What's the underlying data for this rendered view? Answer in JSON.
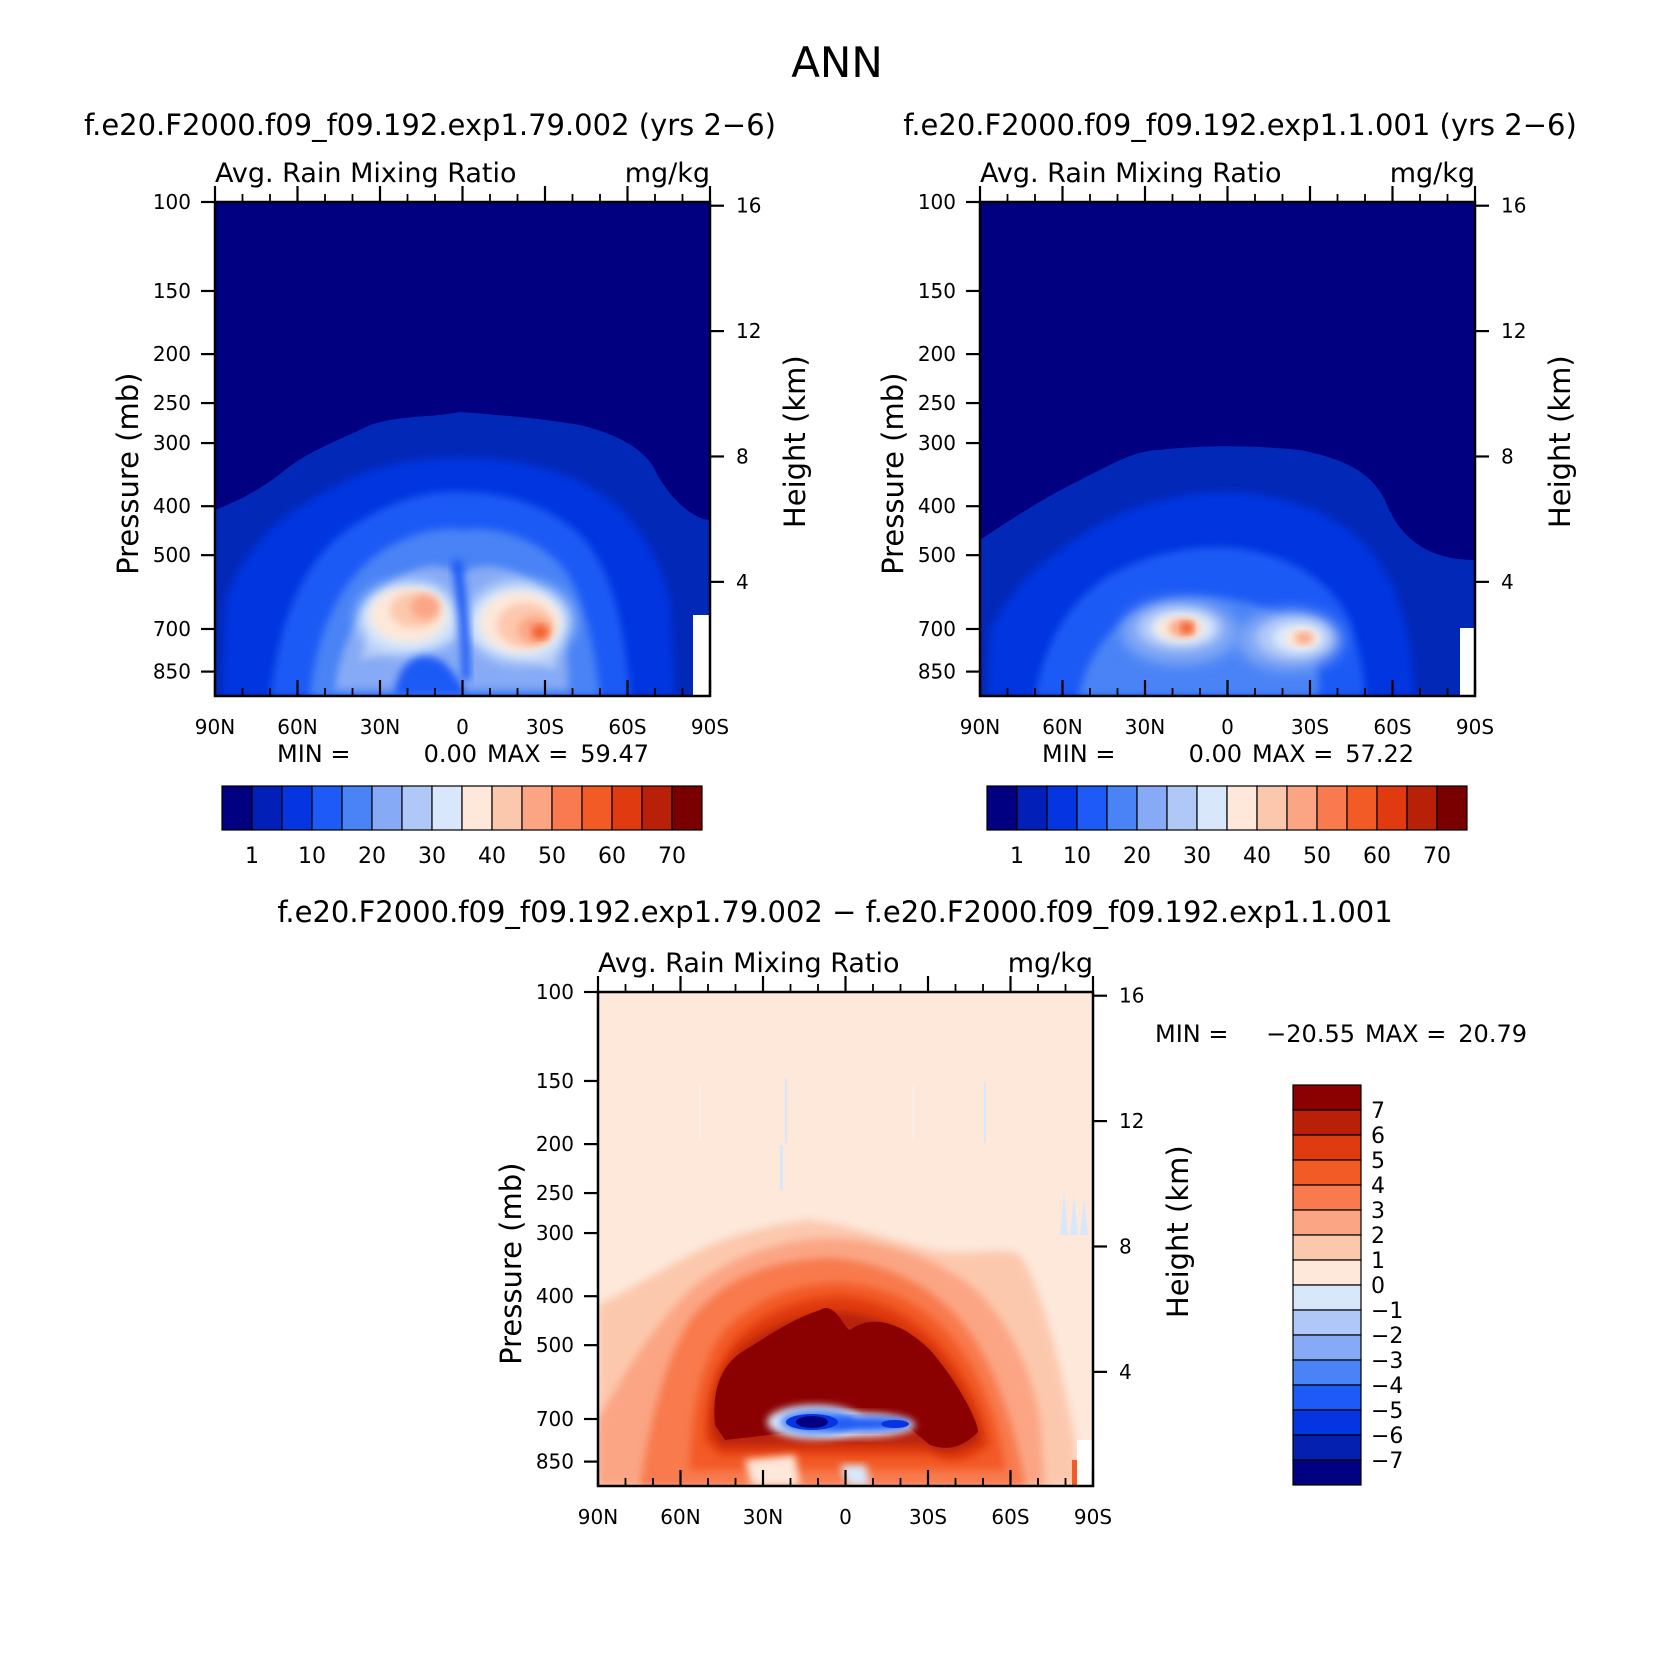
{
  "figure": {
    "title": "ANN",
    "panel_titles": [
      "f.e20.F2000.f09_f09.192.exp1.79.002 (yrs 2−6)",
      "f.e20.F2000.f09_f09.192.exp1.1.001 (yrs 2−6)",
      "f.e20.F2000.f09_f09.192.exp1.79.002 − f.e20.F2000.f09_f09.192.exp1.1.001"
    ]
  },
  "colors": {
    "seq_colorbar": [
      "#000080",
      "#0220b8",
      "#0535e0",
      "#1e5af5",
      "#4a83f5",
      "#86aaf5",
      "#b0c8f8",
      "#d8e8fa",
      "#fde8da",
      "#fcc8ad",
      "#fba584",
      "#f87a4e",
      "#f25a26",
      "#e03a10",
      "#b82008",
      "#7a0000"
    ],
    "diff_colorbar": [
      "#000080",
      "#0320b0",
      "#0535e0",
      "#1e5af5",
      "#4a83f5",
      "#86aaf5",
      "#b0c8f8",
      "#d8e8fa",
      "#fde8da",
      "#fcc8ad",
      "#fba584",
      "#f87a4e",
      "#f25a26",
      "#e03a10",
      "#b82008",
      "#8b0000"
    ]
  },
  "chart_data": [
    {
      "type": "heatmap",
      "title": "f.e20.F2000.f09_f09.192.exp1.79.002 (yrs 2−6)",
      "subtitle_left": "Avg. Rain Mixing Ratio",
      "subtitle_right": "mg/kg",
      "xlabel": "",
      "ylabel": "Pressure (mb)",
      "ylabel_right": "Height (km)",
      "x_ticks": [
        "90N",
        "60N",
        "30N",
        "0",
        "30S",
        "60S",
        "90S"
      ],
      "y_ticks": [
        "100",
        "150",
        "200",
        "250",
        "300",
        "400",
        "500",
        "700",
        "850"
      ],
      "y_ticks_right": [
        "16",
        "12",
        "8",
        "4"
      ],
      "stats": {
        "min_label": "MIN =",
        "min": "0.00",
        "max_label": "MAX =",
        "max": "59.47"
      },
      "colorbar_labels": [
        "1",
        "10",
        "20",
        "30",
        "40",
        "50",
        "60",
        "70"
      ],
      "features": [
        {
          "lat": 15,
          "p": 640,
          "value": 52
        },
        {
          "lat": -30,
          "p": 680,
          "value": 59.47
        }
      ]
    },
    {
      "type": "heatmap",
      "title": "f.e20.F2000.f09_f09.192.exp1.1.001 (yrs 2−6)",
      "subtitle_left": "Avg. Rain Mixing Ratio",
      "subtitle_right": "mg/kg",
      "xlabel": "",
      "ylabel": "Pressure (mb)",
      "ylabel_right": "Height (km)",
      "x_ticks": [
        "90N",
        "60N",
        "30N",
        "0",
        "30S",
        "60S",
        "90S"
      ],
      "y_ticks": [
        "100",
        "150",
        "200",
        "250",
        "300",
        "400",
        "500",
        "700",
        "850"
      ],
      "y_ticks_right": [
        "16",
        "12",
        "8",
        "4"
      ],
      "stats": {
        "min_label": "MIN =",
        "min": "0.00",
        "max_label": "MAX =",
        "max": "57.22"
      },
      "colorbar_labels": [
        "1",
        "10",
        "20",
        "30",
        "40",
        "50",
        "60",
        "70"
      ],
      "features": [
        {
          "lat": 12,
          "p": 690,
          "value": 57.22
        },
        {
          "lat": -28,
          "p": 700,
          "value": 52
        }
      ]
    },
    {
      "type": "heatmap",
      "title": "f.e20.F2000.f09_f09.192.exp1.79.002 − f.e20.F2000.f09_f09.192.exp1.1.001",
      "subtitle_left": "Avg. Rain Mixing Ratio",
      "subtitle_right": "mg/kg",
      "xlabel": "",
      "ylabel": "Pressure (mb)",
      "ylabel_right": "Height (km)",
      "x_ticks": [
        "90N",
        "60N",
        "30N",
        "0",
        "30S",
        "60S",
        "90S"
      ],
      "y_ticks": [
        "100",
        "150",
        "200",
        "250",
        "300",
        "400",
        "500",
        "700",
        "850"
      ],
      "y_ticks_right": [
        "16",
        "12",
        "8",
        "4"
      ],
      "stats": {
        "min_label": "MIN =",
        "min": "−20.55",
        "max_label": "MAX =",
        "max": "20.79"
      },
      "colorbar_labels": [
        "7",
        "6",
        "5",
        "4",
        "3",
        "2",
        "1",
        "0",
        "−1",
        "−2",
        "−3",
        "−4",
        "−5",
        "−6",
        "−7"
      ],
      "features": [
        {
          "lat": 12,
          "p": 700,
          "value": -20.55
        },
        {
          "lat": -20,
          "p": 450,
          "value": 20.79
        }
      ]
    }
  ]
}
